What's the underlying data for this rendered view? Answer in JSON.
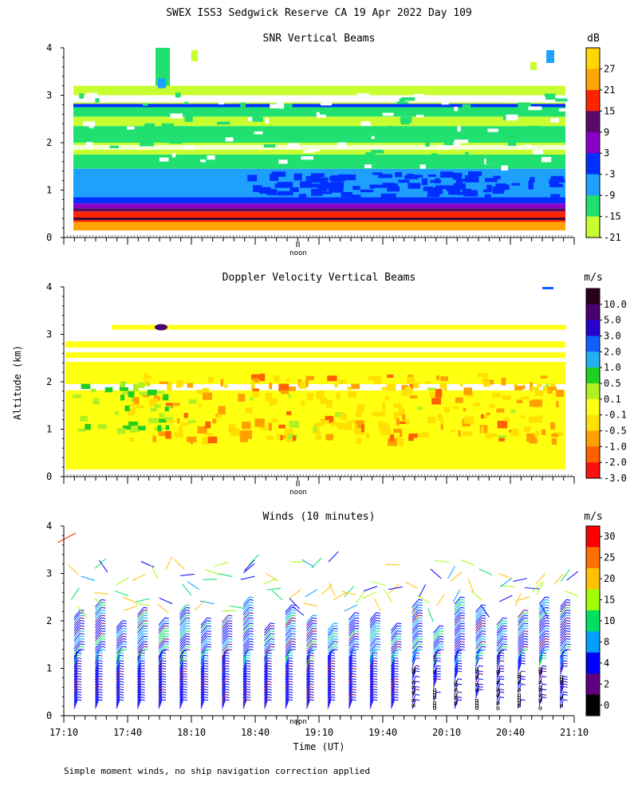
{
  "title": "SWEX ISS3 Sedgwick Reserve CA  19 Apr 2022 Day 109",
  "footnote": "Simple moment winds, no ship navigation correction applied",
  "chart_data": [
    {
      "type": "heatmap",
      "title": "SNR Vertical Beams",
      "ylabel": "",
      "ylim": [
        0,
        4
      ],
      "yticks": [
        "0",
        "1",
        "2",
        "3",
        "4"
      ],
      "noon_label": "noon",
      "colorbar": {
        "unit": "dB",
        "labels": [
          "27",
          "21",
          "15",
          "9",
          "3",
          "-3",
          "-9",
          "-15",
          "-21"
        ],
        "colors": [
          "#ffd700",
          "#ffa500",
          "#ff2400",
          "#5a0a6a",
          "#8b00c8",
          "#0030ff",
          "#1ea0ff",
          "#20e070",
          "#c8ff30"
        ]
      }
    },
    {
      "type": "heatmap",
      "title": "Doppler Velocity Vertical Beams",
      "ylabel": "Altitude (km)",
      "ylim": [
        0,
        4
      ],
      "yticks": [
        "0",
        "1",
        "2",
        "3",
        "4"
      ],
      "noon_label": "noon",
      "colorbar": {
        "unit": "m/s",
        "labels": [
          "10.0",
          "5.0",
          "3.0",
          "2.0",
          "1.0",
          "0.5",
          "0.1",
          "-0.1",
          "-0.5",
          "-1.0",
          "-2.0",
          "-3.0"
        ],
        "colors": [
          "#2a0018",
          "#4a0070",
          "#2800d0",
          "#1060ff",
          "#20b0f0",
          "#20d020",
          "#b0f020",
          "#ffff10",
          "#ffe000",
          "#ffa000",
          "#ff6000",
          "#ff1010"
        ]
      }
    },
    {
      "type": "scatter",
      "title": "Winds (10 minutes)",
      "ylabel": "",
      "xlabel": "Time (UT)",
      "ylim": [
        0,
        4
      ],
      "yticks": [
        "0",
        "1",
        "2",
        "3",
        "4"
      ],
      "xticks": [
        "17:10",
        "17:40",
        "18:10",
        "18:40",
        "19:10",
        "19:40",
        "20:10",
        "20:40",
        "21:10"
      ],
      "noon_label": "noon",
      "colorbar": {
        "unit": "m/s",
        "labels": [
          "30",
          "25",
          "20",
          "15",
          "10",
          "8",
          "4",
          "2",
          "0"
        ],
        "colors": [
          "#ff0000",
          "#ff7000",
          "#ffc000",
          "#a0ff00",
          "#00e060",
          "#00a0ff",
          "#0000ff",
          "#600080",
          "#000000"
        ]
      }
    }
  ]
}
